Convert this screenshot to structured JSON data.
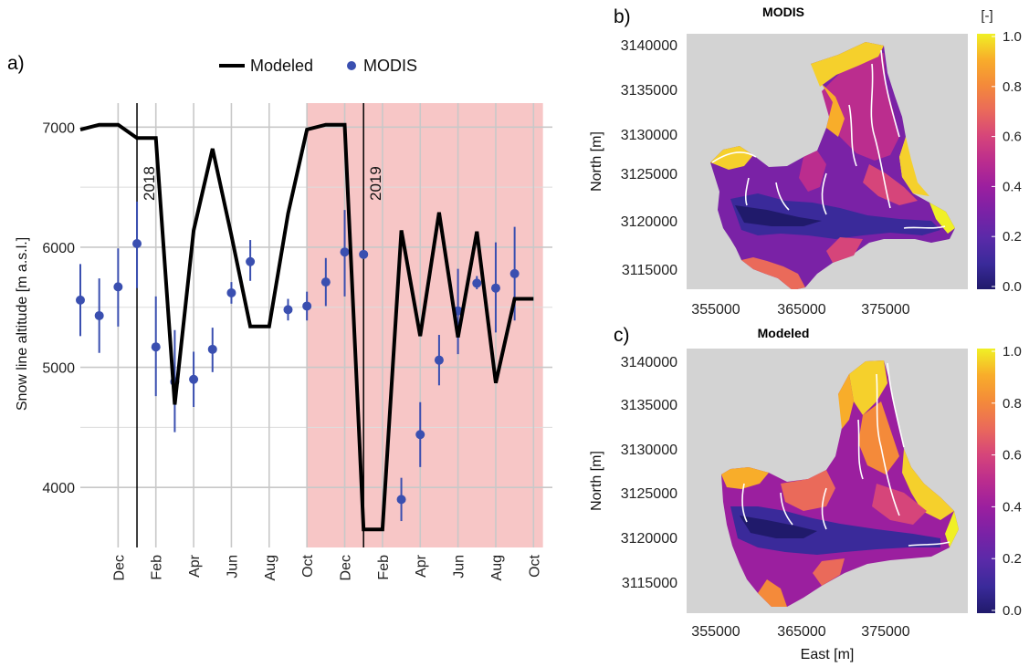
{
  "chart_data": [
    {
      "type": "line",
      "panel_label": "a)",
      "title": "",
      "xlabel": "",
      "ylabel": "Snow line altitude [m a.s.l.]",
      "ylim": [
        3500,
        7200
      ],
      "xlim": [
        0,
        25
      ],
      "y_ticks": [
        4000,
        5000,
        6000,
        7000
      ],
      "x_tick_labels": [
        "Dec",
        "Feb",
        "Apr",
        "Jun",
        "Aug",
        "Oct",
        "Dec",
        "Feb",
        "Apr",
        "Jun",
        "Aug",
        "Oct"
      ],
      "x_tick_values": [
        2,
        4,
        6,
        8,
        10,
        12,
        14,
        16,
        18,
        20,
        22,
        24
      ],
      "grid": true,
      "legend_position": "top",
      "shaded_region": {
        "x_start": 12,
        "x_end": 24.5,
        "color": "#f7c6c6"
      },
      "year_markers": [
        {
          "label": "2018",
          "x": 3
        },
        {
          "label": "2019",
          "x": 15
        }
      ],
      "series": [
        {
          "name": "Modeled",
          "kind": "line",
          "color": "#000000",
          "x": [
            0,
            1,
            2,
            3,
            4,
            5,
            6,
            7,
            8,
            9,
            10,
            11,
            12,
            13,
            14,
            15,
            16,
            17,
            18,
            19,
            20,
            21,
            22,
            23,
            24
          ],
          "values": [
            6980,
            7020,
            7020,
            6910,
            6910,
            4690,
            6140,
            6820,
            6100,
            5340,
            5340,
            6280,
            6980,
            7020,
            7020,
            3650,
            3650,
            6140,
            5260,
            6290,
            5250,
            6130,
            4870,
            5570,
            5570
          ]
        },
        {
          "name": "MODIS",
          "kind": "errorbar",
          "color": "#3a4fb0",
          "x": [
            0,
            1,
            2,
            3,
            4,
            5,
            6,
            7,
            8,
            9,
            11,
            12,
            13,
            14,
            15,
            17,
            18,
            19,
            20,
            21,
            22,
            23
          ],
          "values": [
            5560,
            5430,
            5670,
            6030,
            5170,
            4880,
            4900,
            5150,
            5620,
            5880,
            5480,
            5510,
            5710,
            5960,
            5940,
            3900,
            4440,
            5060,
            5470,
            5700,
            5660,
            5780
          ],
          "error_low": [
            5260,
            5120,
            5340,
            5660,
            4760,
            4460,
            4670,
            4960,
            5530,
            5720,
            5390,
            5390,
            5510,
            5590,
            5940,
            3720,
            4170,
            4850,
            5110,
            5650,
            5290,
            5390
          ],
          "error_high": [
            5860,
            5740,
            5990,
            6380,
            5590,
            5310,
            5130,
            5330,
            5710,
            6060,
            5570,
            5630,
            5910,
            6310,
            5940,
            4080,
            4710,
            5270,
            5820,
            5760,
            6040,
            6170
          ]
        }
      ]
    },
    {
      "type": "heatmap",
      "panel_label": "b)",
      "title": "MODIS",
      "xlabel": "",
      "ylabel": "North [m]",
      "x_ticks": [
        "355000",
        "365000",
        "375000"
      ],
      "y_ticks": [
        "3115000",
        "3120000",
        "3125000",
        "3130000",
        "3135000",
        "3140000"
      ],
      "colorbar": {
        "unit_label": "[-]",
        "range": [
          0,
          1
        ],
        "ticks": [
          "1.0",
          "0.8",
          "0.6",
          "0.4",
          "0.2",
          "0.0"
        ]
      }
    },
    {
      "type": "heatmap",
      "panel_label": "c)",
      "title": "Modeled",
      "xlabel": "East [m]",
      "ylabel": "North [m]",
      "x_ticks": [
        "355000",
        "365000",
        "375000"
      ],
      "y_ticks": [
        "3115000",
        "3120000",
        "3125000",
        "3130000",
        "3135000",
        "3140000"
      ],
      "colorbar": {
        "range": [
          0,
          1
        ],
        "ticks": [
          "1.0",
          "0.8",
          "0.6",
          "0.4",
          "0.2",
          "0.0"
        ]
      }
    }
  ],
  "colors": {
    "palette": [
      "#201a6b",
      "#3a2a9a",
      "#5a2aa8",
      "#7a22a6",
      "#9b1f9f",
      "#bb2d8e",
      "#d6457a",
      "#ea6a5a",
      "#f48a3a",
      "#f8ad2a",
      "#f5d02c",
      "#f0f025"
    ],
    "map_background": "#d3d3d3",
    "grid": "#c8c8c8"
  }
}
